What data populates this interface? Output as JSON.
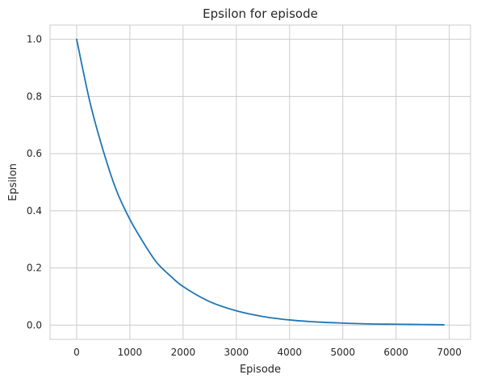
{
  "chart_data": {
    "type": "line",
    "title": "Epsilon for episode",
    "xlabel": "Episode",
    "ylabel": "Epsilon",
    "xlim": [
      -500,
      7400
    ],
    "ylim": [
      -0.05,
      1.05
    ],
    "xticks": [
      0,
      1000,
      2000,
      3000,
      4000,
      5000,
      6000,
      7000
    ],
    "xtick_labels": [
      "0",
      "1000",
      "2000",
      "3000",
      "4000",
      "5000",
      "6000",
      "7000"
    ],
    "yticks": [
      0.0,
      0.2,
      0.4,
      0.6,
      0.8,
      1.0
    ],
    "ytick_labels": [
      "0.0",
      "0.2",
      "0.4",
      "0.6",
      "0.8",
      "1.0"
    ],
    "grid": true,
    "legend": "none",
    "series": [
      {
        "color": "#1f77b4",
        "x": [
          0,
          250,
          500,
          750,
          1000,
          1250,
          1500,
          1750,
          2000,
          2500,
          3000,
          3500,
          4000,
          4500,
          5000,
          5500,
          6000,
          6500,
          6900
        ],
        "y": [
          1.0,
          0.78,
          0.61,
          0.47,
          0.37,
          0.29,
          0.22,
          0.174,
          0.135,
          0.082,
          0.05,
          0.03,
          0.018,
          0.011,
          0.007,
          0.004,
          0.003,
          0.002,
          0.001
        ]
      }
    ]
  }
}
